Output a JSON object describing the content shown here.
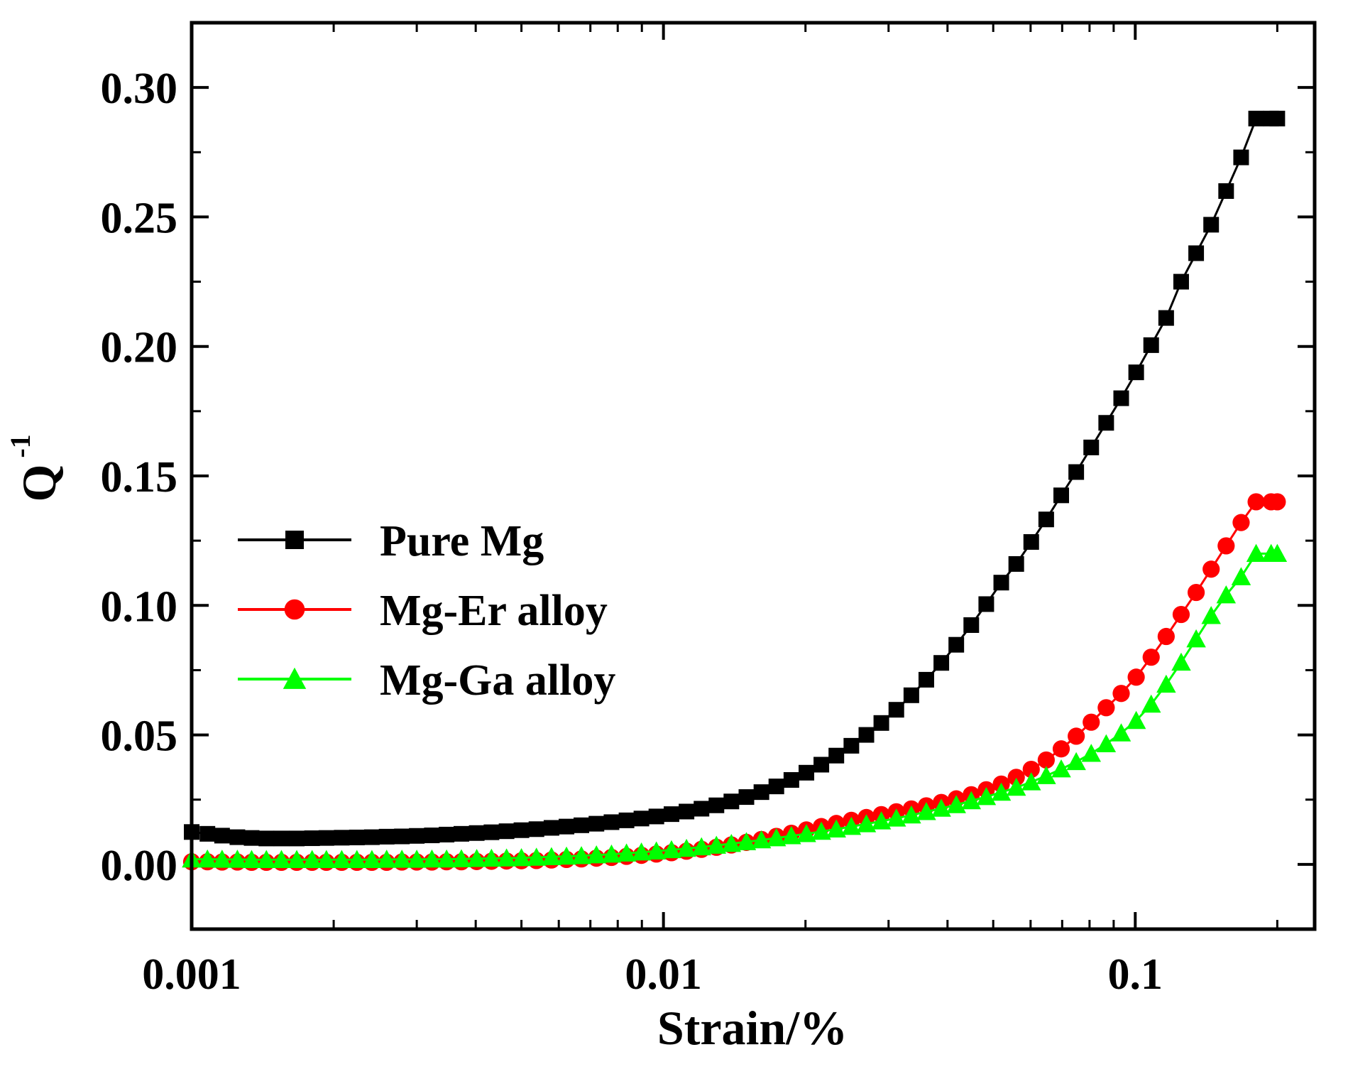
{
  "chart_data": {
    "type": "line",
    "title": "",
    "xlabel": "Strain/%",
    "ylabel": "Q",
    "ylabel_superscript": "-1",
    "xscale": "log",
    "xlim": [
      0.001,
      0.24
    ],
    "ylim": [
      -0.025,
      0.325
    ],
    "x_ticks": [
      {
        "value": 0.001,
        "label": "0.001"
      },
      {
        "value": 0.01,
        "label": "0.01"
      },
      {
        "value": 0.1,
        "label": "0.1"
      }
    ],
    "y_ticks": [
      {
        "value": 0.0,
        "label": "0.00"
      },
      {
        "value": 0.05,
        "label": "0.05"
      },
      {
        "value": 0.1,
        "label": "0.10"
      },
      {
        "value": 0.15,
        "label": "0.15"
      },
      {
        "value": 0.2,
        "label": "0.20"
      },
      {
        "value": 0.25,
        "label": "0.25"
      },
      {
        "value": 0.3,
        "label": "0.30"
      }
    ],
    "legend_position": "middle-left",
    "x": [
      0.001,
      0.00108,
      0.00116,
      0.00125,
      0.00134,
      0.00144,
      0.00155,
      0.00167,
      0.0018,
      0.00193,
      0.00208,
      0.00224,
      0.00241,
      0.00259,
      0.00279,
      0.003,
      0.00323,
      0.00347,
      0.00373,
      0.00402,
      0.00432,
      0.00465,
      0.005,
      0.00538,
      0.00579,
      0.00623,
      0.0067,
      0.00721,
      0.00776,
      0.00835,
      0.00898,
      0.00966,
      0.0104,
      0.01119,
      0.01204,
      0.01295,
      0.01393,
      0.01499,
      0.01613,
      0.01735,
      0.01867,
      0.02009,
      0.02161,
      0.02325,
      0.02502,
      0.02692,
      0.02896,
      0.03116,
      0.03353,
      0.03607,
      0.03881,
      0.04175,
      0.04492,
      0.04833,
      0.052,
      0.05595,
      0.06019,
      0.06476,
      0.06968,
      0.07497,
      0.08066,
      0.08678,
      0.09337,
      0.10046,
      0.10808,
      0.11629,
      0.12511,
      0.13461,
      0.14483,
      0.15582,
      0.16765,
      0.18038,
      0.19407,
      0.2
    ],
    "series": [
      {
        "name": "Pure Mg",
        "color": "#000000",
        "marker": "square",
        "values": [
          0.0125,
          0.0118,
          0.0111,
          0.0105,
          0.0102,
          0.01,
          0.01,
          0.01,
          0.0101,
          0.0102,
          0.0103,
          0.0104,
          0.0105,
          0.0107,
          0.0108,
          0.011,
          0.0112,
          0.0115,
          0.0118,
          0.0121,
          0.0124,
          0.0128,
          0.0132,
          0.0136,
          0.0141,
          0.0146,
          0.0151,
          0.0157,
          0.0163,
          0.017,
          0.0177,
          0.0185,
          0.0194,
          0.0204,
          0.0215,
          0.0228,
          0.0243,
          0.026,
          0.0279,
          0.0301,
          0.0326,
          0.0354,
          0.0385,
          0.042,
          0.0458,
          0.05,
          0.0546,
          0.0597,
          0.0653,
          0.0713,
          0.0778,
          0.0848,
          0.0924,
          0.1005,
          0.1088,
          0.116,
          0.1245,
          0.1332,
          0.1425,
          0.1515,
          0.161,
          0.1705,
          0.18,
          0.19,
          0.2005,
          0.211,
          0.225,
          0.236,
          0.247,
          0.26,
          0.273,
          0.288,
          0.288,
          0.288
        ]
      },
      {
        "name": "Mg-Er alloy",
        "color": "#ff0000",
        "marker": "circle",
        "values": [
          0.001,
          0.001,
          0.0009,
          0.0009,
          0.0008,
          0.0008,
          0.0008,
          0.0008,
          0.0008,
          0.0008,
          0.0008,
          0.0008,
          0.0008,
          0.0008,
          0.0009,
          0.0009,
          0.0009,
          0.001,
          0.001,
          0.0011,
          0.0012,
          0.0013,
          0.0014,
          0.0015,
          0.0017,
          0.0019,
          0.0021,
          0.0024,
          0.0027,
          0.0031,
          0.0035,
          0.004,
          0.0045,
          0.0051,
          0.0058,
          0.0066,
          0.0075,
          0.0085,
          0.0096,
          0.0108,
          0.012,
          0.0133,
          0.0146,
          0.0158,
          0.017,
          0.0181,
          0.0192,
          0.0203,
          0.0214,
          0.0226,
          0.0239,
          0.0253,
          0.0269,
          0.0288,
          0.031,
          0.0336,
          0.0367,
          0.0403,
          0.0446,
          0.0495,
          0.0549,
          0.0605,
          0.066,
          0.0723,
          0.08,
          0.088,
          0.0965,
          0.105,
          0.114,
          0.123,
          0.132,
          0.14,
          0.14,
          0.14
        ]
      },
      {
        "name": "Mg-Ga alloy",
        "color": "#00ff00",
        "marker": "triangle",
        "values": [
          0.002,
          0.002,
          0.0019,
          0.0019,
          0.0018,
          0.0018,
          0.0018,
          0.0018,
          0.0018,
          0.0018,
          0.0018,
          0.0018,
          0.0018,
          0.0019,
          0.0019,
          0.0019,
          0.002,
          0.002,
          0.0021,
          0.0022,
          0.0023,
          0.0024,
          0.0025,
          0.0027,
          0.0029,
          0.0031,
          0.0033,
          0.0036,
          0.0039,
          0.0043,
          0.0047,
          0.0051,
          0.0056,
          0.0061,
          0.0067,
          0.0073,
          0.008,
          0.0087,
          0.0094,
          0.0102,
          0.011,
          0.0118,
          0.0127,
          0.0136,
          0.0146,
          0.0156,
          0.0167,
          0.0178,
          0.019,
          0.0203,
          0.0216,
          0.023,
          0.0245,
          0.0261,
          0.0278,
          0.0297,
          0.0318,
          0.0342,
          0.0368,
          0.0396,
          0.0428,
          0.0465,
          0.0507,
          0.0555,
          0.0618,
          0.0695,
          0.078,
          0.087,
          0.096,
          0.104,
          0.111,
          0.12,
          0.12,
          0.12
        ]
      }
    ]
  }
}
